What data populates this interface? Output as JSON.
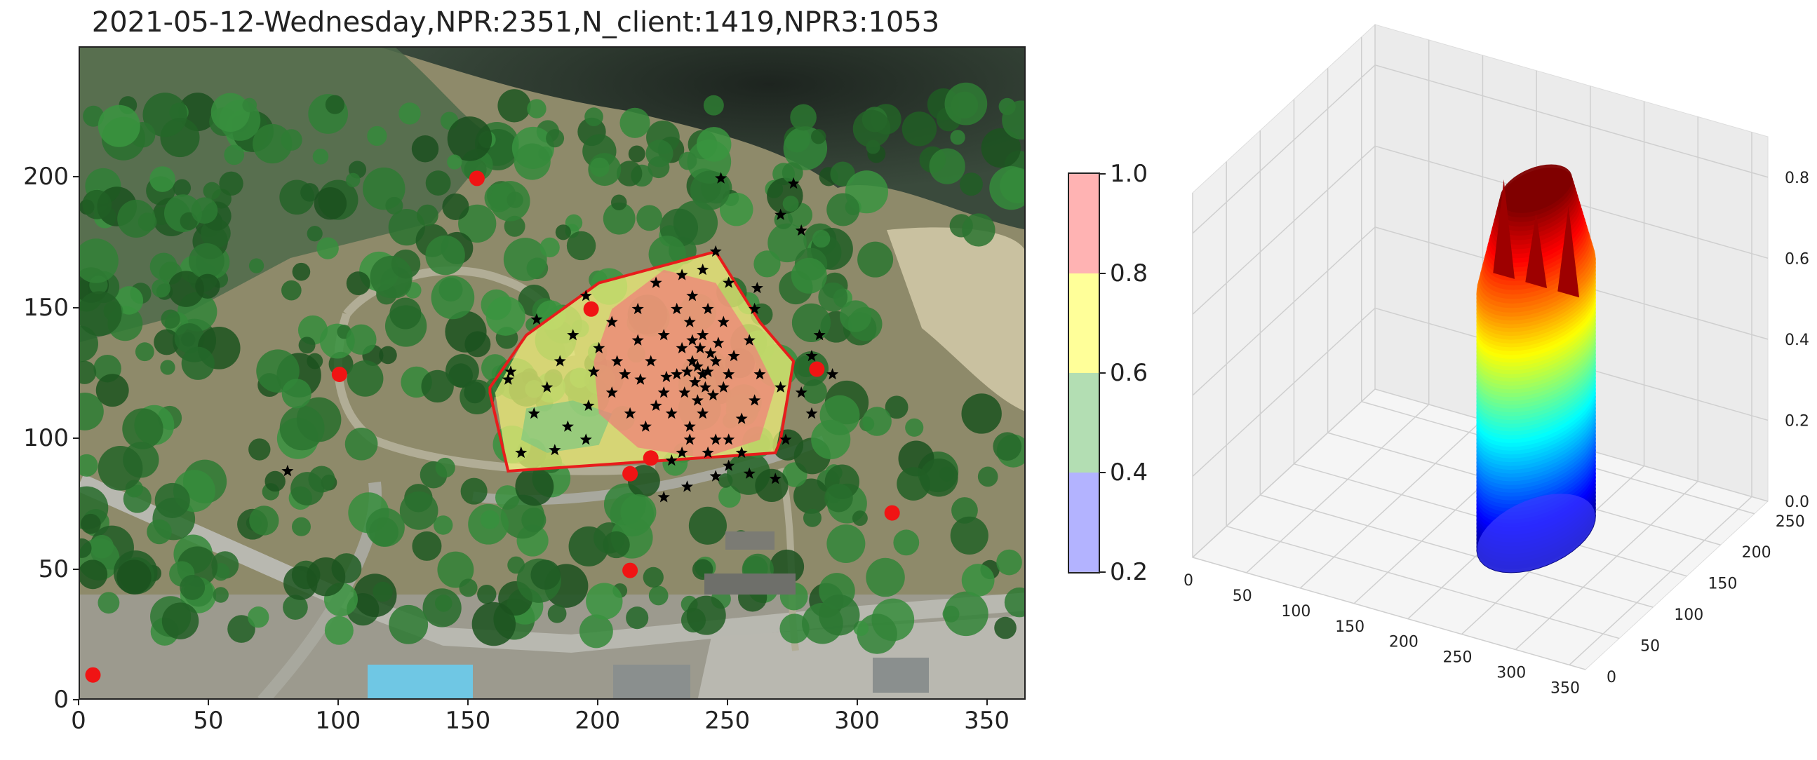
{
  "title": "2021-05-12-Wednesday,NPR:2351,N_client:1419,NPR3:1053",
  "chart_data": [
    {
      "type": "scatter",
      "panel": "map",
      "xlim": [
        0,
        365
      ],
      "ylim": [
        0,
        250
      ],
      "xticks": [
        "0",
        "50",
        "100",
        "150",
        "200",
        "250",
        "300",
        "350"
      ],
      "yticks": [
        "0",
        "50",
        "100",
        "150",
        "200"
      ],
      "hull": [
        [
          158,
          120
        ],
        [
          172,
          140
        ],
        [
          200,
          160
        ],
        [
          245,
          172
        ],
        [
          262,
          145
        ],
        [
          275,
          130
        ],
        [
          270,
          100
        ],
        [
          268,
          95
        ],
        [
          165,
          88
        ],
        [
          158,
          118
        ]
      ],
      "density_regions": [
        {
          "level": "0.6-0.8",
          "color": "#f2f27a",
          "points": [
            [
              160,
              118
            ],
            [
              172,
              140
            ],
            [
              200,
              160
            ],
            [
              245,
              172
            ],
            [
              262,
              145
            ],
            [
              275,
              130
            ],
            [
              268,
              95
            ],
            [
              165,
              88
            ]
          ]
        },
        {
          "level": "0.4-0.6",
          "color": "#7fc87f",
          "points": [
            [
              170,
              100
            ],
            [
              180,
              95
            ],
            [
              200,
              98
            ],
            [
              205,
              110
            ],
            [
              190,
              115
            ],
            [
              172,
              112
            ]
          ]
        },
        {
          "level": "0.8-1.0",
          "color": "#f0807a",
          "points": [
            [
              205,
              150
            ],
            [
              225,
              165
            ],
            [
              245,
              160
            ],
            [
              258,
              140
            ],
            [
              268,
              120
            ],
            [
              262,
              100
            ],
            [
              240,
              93
            ],
            [
              215,
              97
            ],
            [
              200,
              110
            ],
            [
              198,
              130
            ]
          ]
        }
      ],
      "red_points": [
        [
          153,
          200
        ],
        [
          100,
          125
        ],
        [
          284,
          127
        ],
        [
          197,
          150
        ],
        [
          212,
          87
        ],
        [
          220,
          93
        ],
        [
          212,
          50
        ],
        [
          313,
          72
        ],
        [
          5,
          10
        ]
      ],
      "black_points": [
        [
          245,
          172
        ],
        [
          250,
          160
        ],
        [
          240,
          165
        ],
        [
          222,
          160
        ],
        [
          232,
          163
        ],
        [
          215,
          150
        ],
        [
          260,
          150
        ],
        [
          258,
          138
        ],
        [
          230,
          150
        ],
        [
          235,
          145
        ],
        [
          225,
          140
        ],
        [
          240,
          140
        ],
        [
          245,
          130
        ],
        [
          250,
          125
        ],
        [
          248,
          120
        ],
        [
          238,
          115
        ],
        [
          240,
          110
        ],
        [
          235,
          105
        ],
        [
          245,
          100
        ],
        [
          255,
          108
        ],
        [
          260,
          115
        ],
        [
          262,
          125
        ],
        [
          270,
          120
        ],
        [
          220,
          130
        ],
        [
          210,
          125
        ],
        [
          205,
          118
        ],
        [
          225,
          118
        ],
        [
          228,
          110
        ],
        [
          218,
          105
        ],
        [
          212,
          110
        ],
        [
          200,
          135
        ],
        [
          190,
          140
        ],
        [
          185,
          130
        ],
        [
          180,
          120
        ],
        [
          188,
          105
        ],
        [
          175,
          110
        ],
        [
          165,
          123
        ],
        [
          170,
          95
        ],
        [
          195,
          100
        ],
        [
          232,
          95
        ],
        [
          228,
          92
        ],
        [
          242,
          95
        ],
        [
          250,
          90
        ],
        [
          268,
          85
        ],
        [
          272,
          100
        ],
        [
          278,
          118
        ],
        [
          282,
          110
        ],
        [
          282,
          132
        ],
        [
          290,
          125
        ],
        [
          285,
          140
        ],
        [
          195,
          155
        ],
        [
          205,
          145
        ],
        [
          215,
          138
        ],
        [
          230,
          125
        ],
        [
          237,
          122
        ],
        [
          242,
          126
        ],
        [
          236,
          130
        ],
        [
          233,
          118
        ],
        [
          244,
          117
        ],
        [
          239,
          135
        ],
        [
          226,
          124
        ],
        [
          252,
          132
        ],
        [
          225,
          78
        ],
        [
          234,
          82
        ],
        [
          245,
          86
        ],
        [
          258,
          87
        ],
        [
          247,
          200
        ],
        [
          275,
          198
        ],
        [
          270,
          186
        ],
        [
          278,
          180
        ],
        [
          176,
          146
        ],
        [
          166,
          126
        ],
        [
          183,
          96
        ],
        [
          196,
          113
        ],
        [
          198,
          126
        ],
        [
          207,
          130
        ],
        [
          216,
          123
        ],
        [
          222,
          113
        ],
        [
          235,
          100
        ],
        [
          250,
          100
        ],
        [
          255,
          95
        ],
        [
          80,
          88
        ],
        [
          248,
          145
        ],
        [
          261,
          158
        ],
        [
          236,
          155
        ],
        [
          242,
          150
        ],
        [
          246,
          137
        ],
        [
          232,
          135
        ],
        [
          240,
          125
        ],
        [
          238,
          128
        ],
        [
          241,
          120
        ],
        [
          234,
          126
        ],
        [
          243,
          133
        ],
        [
          236,
          138
        ]
      ]
    },
    {
      "type": "heatmap",
      "panel": "colorbar",
      "ticks": [
        "0.2",
        "0.4",
        "0.6",
        "0.8",
        "1.0"
      ],
      "bands": [
        {
          "from": 0.2,
          "to": 0.4,
          "color": "#b3b3ff"
        },
        {
          "from": 0.4,
          "to": 0.6,
          "color": "#b3deb3"
        },
        {
          "from": 0.6,
          "to": 0.8,
          "color": "#ffff99"
        },
        {
          "from": 0.8,
          "to": 1.0,
          "color": "#ffb3b3"
        }
      ]
    },
    {
      "type": "area",
      "panel": "surface-3d",
      "x_ticks": [
        "0",
        "50",
        "100",
        "150",
        "200",
        "250",
        "300",
        "350"
      ],
      "y_ticks": [
        "0",
        "50",
        "100",
        "150",
        "200",
        "250"
      ],
      "z_ticks": [
        "0.0",
        "0.2",
        "0.4",
        "0.6",
        "0.8"
      ],
      "xlim": [
        0,
        365
      ],
      "ylim": [
        0,
        270
      ],
      "zlim": [
        0,
        0.9
      ],
      "surface_peak": 0.85
    }
  ]
}
